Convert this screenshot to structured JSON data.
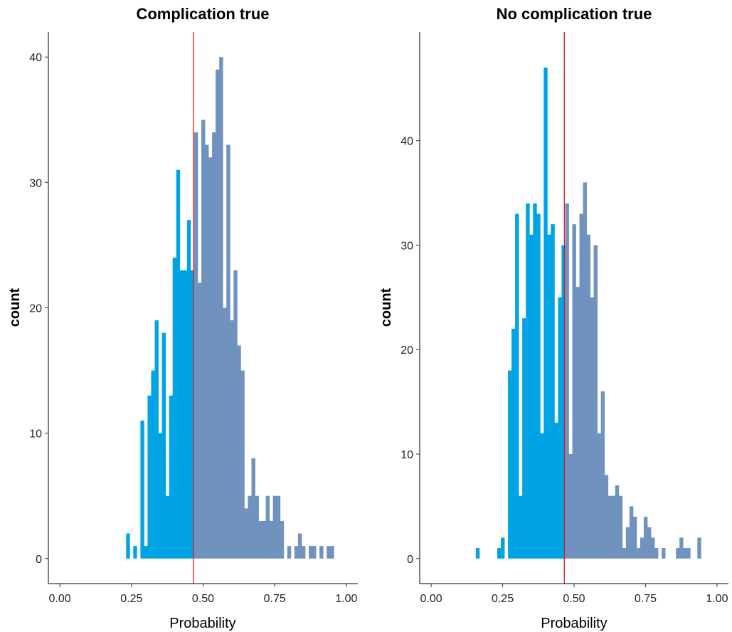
{
  "colors": {
    "below_threshold": "#00A4E4",
    "above_threshold": "#7092BE",
    "threshold_line": "#E41A1C",
    "axis": "#000000"
  },
  "chart_data": [
    {
      "type": "bar",
      "title": "Complication true",
      "xlabel": "Probability",
      "ylabel": "count",
      "xlim": [
        -0.04,
        1.04
      ],
      "ylim": [
        -2,
        42
      ],
      "xticks": [
        0,
        0.25,
        0.5,
        0.75,
        1
      ],
      "xtick_labels": [
        "0.00",
        "0.25",
        "0.50",
        "0.75",
        "1.00"
      ],
      "yticks": [
        0,
        10,
        20,
        30,
        40
      ],
      "ytick_labels": [
        "0",
        "10",
        "20",
        "30",
        "40"
      ],
      "bin_width": 0.0125,
      "threshold": 0.466,
      "grid": false,
      "bins": [
        {
          "x": 0.2375,
          "count": 2
        },
        {
          "x": 0.2625,
          "count": 1
        },
        {
          "x": 0.2875,
          "count": 11
        },
        {
          "x": 0.3,
          "count": 1
        },
        {
          "x": 0.3125,
          "count": 13
        },
        {
          "x": 0.325,
          "count": 15
        },
        {
          "x": 0.3375,
          "count": 19
        },
        {
          "x": 0.35,
          "count": 10
        },
        {
          "x": 0.3625,
          "count": 18
        },
        {
          "x": 0.375,
          "count": 5
        },
        {
          "x": 0.3875,
          "count": 13
        },
        {
          "x": 0.4,
          "count": 24
        },
        {
          "x": 0.4125,
          "count": 31
        },
        {
          "x": 0.425,
          "count": 23
        },
        {
          "x": 0.4375,
          "count": 23
        },
        {
          "x": 0.45,
          "count": 27
        },
        {
          "x": 0.4625,
          "count": 23
        },
        {
          "x": 0.475,
          "count": 34
        },
        {
          "x": 0.4875,
          "count": 22
        },
        {
          "x": 0.5,
          "count": 35
        },
        {
          "x": 0.5125,
          "count": 33
        },
        {
          "x": 0.525,
          "count": 32
        },
        {
          "x": 0.5375,
          "count": 34
        },
        {
          "x": 0.55,
          "count": 39
        },
        {
          "x": 0.5625,
          "count": 40
        },
        {
          "x": 0.575,
          "count": 20
        },
        {
          "x": 0.5875,
          "count": 33
        },
        {
          "x": 0.6,
          "count": 19
        },
        {
          "x": 0.6125,
          "count": 23
        },
        {
          "x": 0.625,
          "count": 17
        },
        {
          "x": 0.6375,
          "count": 15
        },
        {
          "x": 0.65,
          "count": 4
        },
        {
          "x": 0.6625,
          "count": 5
        },
        {
          "x": 0.675,
          "count": 8
        },
        {
          "x": 0.6875,
          "count": 5
        },
        {
          "x": 0.7,
          "count": 3
        },
        {
          "x": 0.7125,
          "count": 3
        },
        {
          "x": 0.725,
          "count": 5
        },
        {
          "x": 0.7375,
          "count": 3
        },
        {
          "x": 0.75,
          "count": 5
        },
        {
          "x": 0.7625,
          "count": 5
        },
        {
          "x": 0.775,
          "count": 3
        },
        {
          "x": 0.8,
          "count": 1
        },
        {
          "x": 0.825,
          "count": 1
        },
        {
          "x": 0.8375,
          "count": 2
        },
        {
          "x": 0.85,
          "count": 1
        },
        {
          "x": 0.875,
          "count": 1
        },
        {
          "x": 0.8875,
          "count": 1
        },
        {
          "x": 0.9125,
          "count": 1
        },
        {
          "x": 0.9375,
          "count": 1
        },
        {
          "x": 0.95,
          "count": 1
        }
      ]
    },
    {
      "type": "bar",
      "title": "No complication true",
      "xlabel": "Probability",
      "ylabel": "count",
      "xlim": [
        -0.04,
        1.04
      ],
      "ylim": [
        -2.4,
        50.4
      ],
      "xticks": [
        0,
        0.25,
        0.5,
        0.75,
        1
      ],
      "xtick_labels": [
        "0.00",
        "0.25",
        "0.50",
        "0.75",
        "1.00"
      ],
      "yticks": [
        0,
        10,
        20,
        30,
        40
      ],
      "ytick_labels": [
        "0",
        "10",
        "20",
        "30",
        "40"
      ],
      "bin_width": 0.0125,
      "threshold": 0.466,
      "grid": false,
      "bins": [
        {
          "x": 0.1625,
          "count": 1
        },
        {
          "x": 0.2375,
          "count": 1
        },
        {
          "x": 0.25,
          "count": 2
        },
        {
          "x": 0.275,
          "count": 18
        },
        {
          "x": 0.2875,
          "count": 22
        },
        {
          "x": 0.3,
          "count": 33
        },
        {
          "x": 0.3125,
          "count": 6
        },
        {
          "x": 0.325,
          "count": 23
        },
        {
          "x": 0.3375,
          "count": 34
        },
        {
          "x": 0.35,
          "count": 31
        },
        {
          "x": 0.3625,
          "count": 34
        },
        {
          "x": 0.375,
          "count": 33
        },
        {
          "x": 0.3875,
          "count": 12
        },
        {
          "x": 0.4,
          "count": 47
        },
        {
          "x": 0.4125,
          "count": 31
        },
        {
          "x": 0.425,
          "count": 32
        },
        {
          "x": 0.4375,
          "count": 13
        },
        {
          "x": 0.45,
          "count": 25
        },
        {
          "x": 0.4625,
          "count": 30
        },
        {
          "x": 0.475,
          "count": 34
        },
        {
          "x": 0.4875,
          "count": 10
        },
        {
          "x": 0.5,
          "count": 32
        },
        {
          "x": 0.5125,
          "count": 26
        },
        {
          "x": 0.525,
          "count": 33
        },
        {
          "x": 0.5375,
          "count": 36
        },
        {
          "x": 0.55,
          "count": 31
        },
        {
          "x": 0.5625,
          "count": 25
        },
        {
          "x": 0.575,
          "count": 30
        },
        {
          "x": 0.5875,
          "count": 12
        },
        {
          "x": 0.6,
          "count": 16
        },
        {
          "x": 0.6125,
          "count": 8
        },
        {
          "x": 0.625,
          "count": 6
        },
        {
          "x": 0.6375,
          "count": 6
        },
        {
          "x": 0.65,
          "count": 7
        },
        {
          "x": 0.6625,
          "count": 6
        },
        {
          "x": 0.675,
          "count": 1
        },
        {
          "x": 0.6875,
          "count": 3
        },
        {
          "x": 0.7,
          "count": 5
        },
        {
          "x": 0.7125,
          "count": 4
        },
        {
          "x": 0.725,
          "count": 1
        },
        {
          "x": 0.7375,
          "count": 2
        },
        {
          "x": 0.75,
          "count": 4
        },
        {
          "x": 0.7625,
          "count": 3
        },
        {
          "x": 0.775,
          "count": 2
        },
        {
          "x": 0.7875,
          "count": 1
        },
        {
          "x": 0.8125,
          "count": 1
        },
        {
          "x": 0.8625,
          "count": 1
        },
        {
          "x": 0.875,
          "count": 2
        },
        {
          "x": 0.8875,
          "count": 1
        },
        {
          "x": 0.9,
          "count": 1
        },
        {
          "x": 0.9375,
          "count": 2
        }
      ]
    }
  ]
}
